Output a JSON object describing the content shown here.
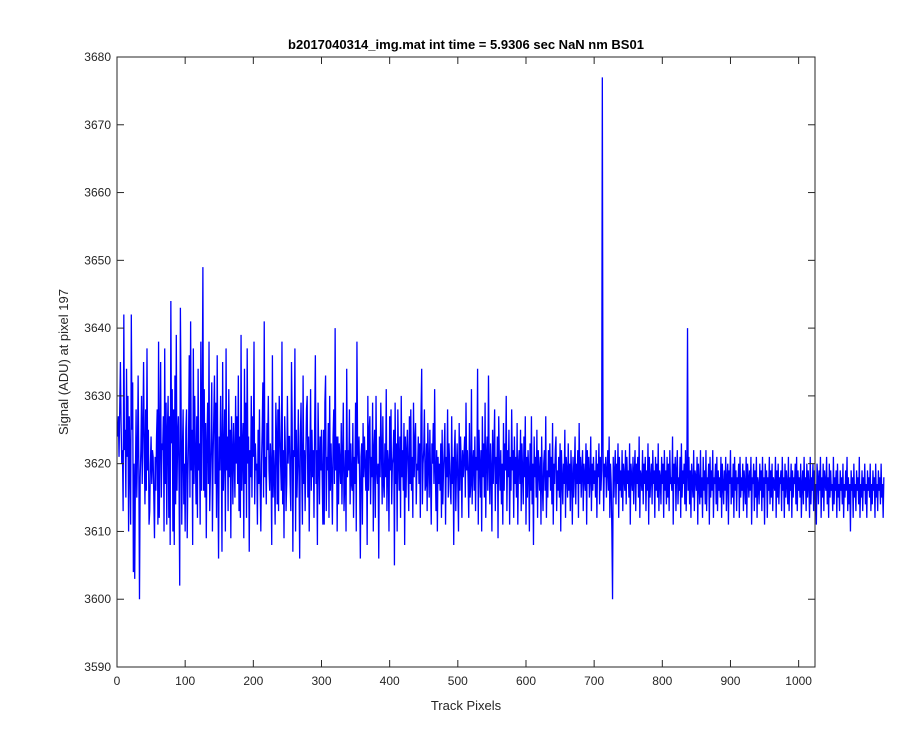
{
  "chart_data": {
    "type": "line",
    "title": "b2017040314_img.mat int time = 5.9306 sec  NaN nm BS01",
    "xlabel": "Track Pixels",
    "ylabel": "Signal (ADU) at pixel 197",
    "xlim": [
      0,
      1024
    ],
    "ylim": [
      3590,
      3680
    ],
    "xticks": [
      0,
      100,
      200,
      300,
      400,
      500,
      600,
      700,
      800,
      900,
      1000
    ],
    "yticks": [
      3590,
      3600,
      3610,
      3620,
      3630,
      3640,
      3650,
      3660,
      3670,
      3680
    ],
    "grid": false,
    "line_color": "#0000ff",
    "axis_color": "#262626",
    "series": [
      {
        "x_start": 1,
        "x_step": 1,
        "values": [
          3624,
          3627,
          3621,
          3628,
          3635,
          3626,
          3620,
          3622,
          3613,
          3642,
          3622,
          3625,
          3615,
          3634,
          3621,
          3630,
          3610,
          3627,
          3620,
          3611,
          3642,
          3625,
          3632,
          3604,
          3620,
          3603,
          3618,
          3628,
          3615,
          3621,
          3633,
          3620,
          3600,
          3618,
          3622,
          3630,
          3617,
          3625,
          3635,
          3622,
          3614,
          3628,
          3616,
          3637,
          3619,
          3625,
          3611,
          3613,
          3620,
          3624,
          3617,
          3622,
          3621,
          3615,
          3609,
          3621,
          3616,
          3624,
          3628,
          3611,
          3638,
          3612,
          3623,
          3635,
          3615,
          3623,
          3622,
          3627,
          3610,
          3637,
          3617,
          3629,
          3611,
          3625,
          3630,
          3612,
          3627,
          3608,
          3644,
          3623,
          3631,
          3610,
          3628,
          3608,
          3633,
          3614,
          3639,
          3616,
          3624,
          3627,
          3617,
          3602,
          3643,
          3629,
          3611,
          3622,
          3628,
          3614,
          3620,
          3610,
          3625,
          3628,
          3609,
          3618,
          3624,
          3636,
          3615,
          3641,
          3619,
          3625,
          3608,
          3637,
          3617,
          3630,
          3621,
          3614,
          3627,
          3612,
          3634,
          3619,
          3623,
          3611,
          3638,
          3616,
          3628,
          3649,
          3616,
          3631,
          3615,
          3626,
          3609,
          3623,
          3629,
          3617,
          3638,
          3613,
          3618,
          3624,
          3632,
          3610,
          3621,
          3627,
          3633,
          3617,
          3629,
          3612,
          3636,
          3618,
          3606,
          3624,
          3619,
          3630,
          3622,
          3607,
          3635,
          3616,
          3621,
          3628,
          3610,
          3637,
          3619,
          3624,
          3613,
          3631,
          3618,
          3625,
          3609,
          3627,
          3622,
          3614,
          3626,
          3621,
          3615,
          3630,
          3620,
          3627,
          3617,
          3633,
          3613,
          3624,
          3612,
          3639,
          3616,
          3622,
          3626,
          3609,
          3634,
          3617,
          3629,
          3612,
          3637,
          3620,
          3624,
          3607,
          3622,
          3618,
          3630,
          3615,
          3627,
          3621,
          3638,
          3614,
          3623,
          3619,
          3620,
          3611,
          3625,
          3617,
          3628,
          3617,
          3610,
          3620,
          3625,
          3632,
          3615,
          3641,
          3618,
          3621,
          3614,
          3626,
          3622,
          3630,
          3619,
          3616,
          3623,
          3619,
          3608,
          3636,
          3615,
          3622,
          3618,
          3611,
          3629,
          3624,
          3614,
          3628,
          3613,
          3630,
          3625,
          3620,
          3616,
          3638,
          3614,
          3622,
          3609,
          3627,
          3622,
          3613,
          3617,
          3630,
          3620,
          3624,
          3624,
          3617,
          3613,
          3635,
          3626,
          3607,
          3622,
          3621,
          3637,
          3610,
          3625,
          3615,
          3620,
          3628,
          3618,
          3606,
          3624,
          3629,
          3619,
          3611,
          3633,
          3617,
          3622,
          3613,
          3621,
          3628,
          3630,
          3615,
          3624,
          3610,
          3620,
          3631,
          3616,
          3625,
          3618,
          3622,
          3612,
          3626,
          3636,
          3617,
          3622,
          3608,
          3629,
          3621,
          3614,
          3624,
          3619,
          3625,
          3618,
          3611,
          3625,
          3611,
          3629,
          3633,
          3613,
          3621,
          3619,
          3626,
          3612,
          3630,
          3616,
          3623,
          3618,
          3611,
          3624,
          3628,
          3617,
          3640,
          3619,
          3624,
          3610,
          3624,
          3614,
          3623,
          3620,
          3617,
          3626,
          3614,
          3621,
          3629,
          3613,
          3617,
          3622,
          3610,
          3634,
          3618,
          3622,
          3619,
          3628,
          3614,
          3623,
          3617,
          3616,
          3626,
          3612,
          3621,
          3617,
          3629,
          3610,
          3638,
          3622,
          3620,
          3624,
          3617,
          3606,
          3621,
          3623,
          3611,
          3626,
          3618,
          3624,
          3620,
          3616,
          3622,
          3608,
          3630,
          3616,
          3625,
          3627,
          3614,
          3621,
          3618,
          3629,
          3610,
          3622,
          3625,
          3612,
          3630,
          3619,
          3617,
          3620,
          3606,
          3624,
          3618,
          3629,
          3622,
          3614,
          3627,
          3617,
          3615,
          3623,
          3618,
          3631,
          3613,
          3622,
          3620,
          3610,
          3627,
          3619,
          3628,
          3614,
          3620,
          3621,
          3625,
          3605,
          3629,
          3617,
          3623,
          3610,
          3628,
          3621,
          3616,
          3624,
          3612,
          3630,
          3618,
          3622,
          3616,
          3626,
          3608,
          3624,
          3615,
          3622,
          3625,
          3619,
          3613,
          3627,
          3617,
          3628,
          3616,
          3621,
          3612,
          3629,
          3618,
          3623,
          3626,
          3614,
          3620,
          3619,
          3624,
          3617,
          3623,
          3612,
          3627,
          3634,
          3614,
          3620,
          3622,
          3628,
          3616,
          3617,
          3623,
          3613,
          3626,
          3620,
          3615,
          3625,
          3618,
          3611,
          3623,
          3620,
          3626,
          3617,
          3631,
          3619,
          3613,
          3622,
          3610,
          3621,
          3617,
          3620,
          3616,
          3623,
          3612,
          3625,
          3614,
          3619,
          3622,
          3626,
          3611,
          3621,
          3618,
          3628,
          3615,
          3623,
          3620,
          3616,
          3614,
          3627,
          3617,
          3621,
          3608,
          3622,
          3625,
          3613,
          3619,
          3623,
          3617,
          3610,
          3626,
          3616,
          3624,
          3620,
          3612,
          3622,
          3618,
          3621,
          3624,
          3615,
          3629,
          3619,
          3622,
          3618,
          3612,
          3626,
          3615,
          3617,
          3631,
          3614,
          3620,
          3622,
          3616,
          3624,
          3613,
          3621,
          3619,
          3634,
          3611,
          3625,
          3620,
          3615,
          3622,
          3610,
          3627,
          3618,
          3623,
          3615,
          3629,
          3612,
          3621,
          3624,
          3616,
          3633,
          3620,
          3614,
          3623,
          3619,
          3610,
          3625,
          3617,
          3622,
          3628,
          3613,
          3621,
          3617,
          3624,
          3609,
          3627,
          3620,
          3616,
          3622,
          3614,
          3620,
          3611,
          3626,
          3616,
          3623,
          3619,
          3630,
          3613,
          3622,
          3618,
          3625,
          3611,
          3621,
          3616,
          3628,
          3619,
          3622,
          3612,
          3624,
          3617,
          3621,
          3615,
          3626,
          3611,
          3620,
          3622,
          3617,
          3625,
          3613,
          3623,
          3619,
          3614,
          3624,
          3618,
          3627,
          3611,
          3621,
          3615,
          3622,
          3619,
          3610,
          3623,
          3616,
          3627,
          3614,
          3620,
          3608,
          3624,
          3618,
          3621,
          3615,
          3625,
          3612,
          3622,
          3619,
          3616,
          3621,
          3611,
          3624,
          3617,
          3613,
          3620,
          3622,
          3616,
          3627,
          3612,
          3619,
          3615,
          3622,
          3618,
          3623,
          3616,
          3621,
          3614,
          3626,
          3611,
          3620,
          3617,
          3622,
          3624,
          3613,
          3619,
          3616,
          3621,
          3615,
          3623,
          3610,
          3622,
          3618,
          3614,
          3620,
          3617,
          3625,
          3612,
          3621,
          3619,
          3615,
          3623,
          3616,
          3620,
          3613,
          3622,
          3618,
          3611,
          3621,
          3615,
          3619,
          3624,
          3614,
          3620,
          3617,
          3622,
          3612,
          3626,
          3617,
          3621,
          3615,
          3619,
          3622,
          3613,
          3620,
          3618,
          3616,
          3623,
          3611,
          3622,
          3617,
          3621,
          3615,
          3618,
          3624,
          3613,
          3620,
          3616,
          3621,
          3617,
          3619,
          3615,
          3622,
          3612,
          3620,
          3618,
          3623,
          3614,
          3621,
          3616,
          3619,
          3677,
          3622,
          3613,
          3620,
          3618,
          3621,
          3615,
          3619,
          3622,
          3616,
          3624,
          3612,
          3620,
          3617,
          3610,
          3600,
          3621,
          3615,
          3619,
          3622,
          3614,
          3620,
          3617,
          3623,
          3612,
          3621,
          3616,
          3619,
          3615,
          3622,
          3613,
          3620,
          3618,
          3616,
          3622,
          3614,
          3621,
          3617,
          3619,
          3615,
          3623,
          3611,
          3620,
          3618,
          3616,
          3621,
          3614,
          3619,
          3622,
          3613,
          3620,
          3617,
          3621,
          3615,
          3624,
          3612,
          3619,
          3618,
          3616,
          3622,
          3614,
          3620,
          3617,
          3621,
          3613,
          3619,
          3616,
          3623,
          3611,
          3621,
          3615,
          3618,
          3620,
          3614,
          3622,
          3617,
          3619,
          3612,
          3621,
          3616,
          3620,
          3615,
          3623,
          3613,
          3619,
          3618,
          3614,
          3621,
          3617,
          3620,
          3612,
          3622,
          3616,
          3619,
          3614,
          3621,
          3615,
          3620,
          3613,
          3622,
          3617,
          3618,
          3616,
          3624,
          3611,
          3620,
          3617,
          3621,
          3613,
          3619,
          3622,
          3614,
          3618,
          3616,
          3621,
          3612,
          3623,
          3615,
          3619,
          3617,
          3620,
          3614,
          3622,
          3613,
          3618,
          3640,
          3616,
          3621,
          3614,
          3619,
          3612,
          3620,
          3617,
          3615,
          3622,
          3613,
          3619,
          3618,
          3616,
          3621,
          3611,
          3620,
          3617,
          3614,
          3622,
          3615,
          3618,
          3612,
          3621,
          3616,
          3619,
          3614,
          3622,
          3613,
          3618,
          3617,
          3620,
          3611,
          3621,
          3615,
          3619,
          3616,
          3622,
          3612,
          3618,
          3617,
          3620,
          3614,
          3621,
          3613,
          3619,
          3616,
          3618,
          3615,
          3621,
          3612,
          3620,
          3617,
          3614,
          3619,
          3616,
          3621,
          3613,
          3618,
          3620,
          3611,
          3619,
          3617,
          3622,
          3614,
          3618,
          3615,
          3620,
          3612,
          3621,
          3616,
          3619,
          3613,
          3618,
          3617,
          3620,
          3612,
          3621,
          3615,
          3618,
          3616,
          3620,
          3613,
          3619,
          3617,
          3614,
          3621,
          3612,
          3620,
          3618,
          3615,
          3619,
          3616,
          3621,
          3611,
          3618,
          3617,
          3620,
          3613,
          3619,
          3615,
          3621,
          3612,
          3618,
          3617,
          3614,
          3620,
          3616,
          3619,
          3613,
          3621,
          3615,
          3618,
          3611,
          3620,
          3617,
          3619,
          3612,
          3618,
          3616,
          3621,
          3614,
          3619,
          3615,
          3620,
          3613,
          3618,
          3617,
          3616,
          3621,
          3612,
          3619,
          3615,
          3620,
          3614,
          3618,
          3617,
          3619,
          3613,
          3621,
          3616,
          3618,
          3612,
          3620,
          3615,
          3619,
          3617,
          3614,
          3621,
          3613,
          3618,
          3616,
          3620,
          3612,
          3619,
          3615,
          3618,
          3617,
          3620,
          3614,
          3621,
          3613,
          3619,
          3616,
          3618,
          3615,
          3620,
          3612,
          3617,
          3619,
          3614,
          3621,
          3616,
          3618,
          3613,
          3620,
          3615,
          3619,
          3617,
          3612,
          3621,
          3614,
          3618,
          3616,
          3620,
          3613,
          3619,
          3615,
          3617,
          3611,
          3620,
          3618,
          3614,
          3619,
          3616,
          3621,
          3612,
          3618,
          3615,
          3620,
          3613,
          3619,
          3617,
          3616,
          3621,
          3614,
          3618,
          3612,
          3620,
          3615,
          3619,
          3616,
          3617,
          3613,
          3621,
          3614,
          3618,
          3616,
          3619,
          3612,
          3620,
          3615,
          3617,
          3613,
          3619,
          3616,
          3618,
          3614,
          3620,
          3612,
          3617,
          3615,
          3619,
          3616,
          3621,
          3613,
          3618,
          3614,
          3617,
          3610,
          3619,
          3616,
          3618,
          3612,
          3620,
          3615,
          3617,
          3613,
          3619,
          3616,
          3618,
          3614,
          3621,
          3612,
          3617,
          3615,
          3619,
          3613,
          3618,
          3616,
          3620,
          3614,
          3617,
          3612,
          3619,
          3616,
          3618,
          3615,
          3620,
          3613,
          3617,
          3614,
          3619,
          3616,
          3618,
          3612,
          3620,
          3615,
          3617,
          3613,
          3619,
          3616,
          3618,
          3614,
          3620,
          3615,
          3617,
          3612,
          3618
        ]
      }
    ]
  }
}
